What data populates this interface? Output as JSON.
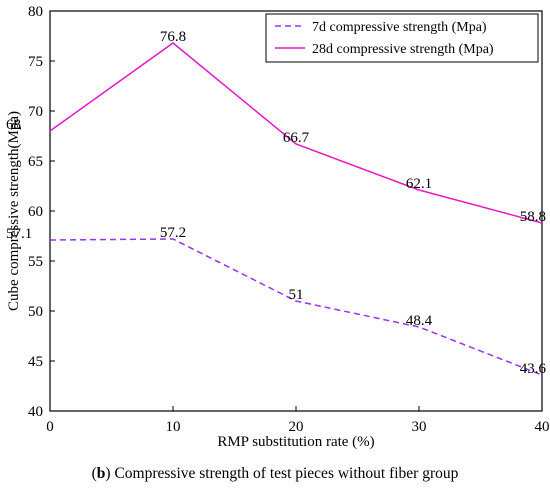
{
  "chart_data": {
    "type": "line",
    "x": [
      0,
      10,
      20,
      30,
      40
    ],
    "series": [
      {
        "name": "7d compressive strength (Mpa)",
        "values": [
          57.1,
          57.2,
          51,
          48.4,
          43.6
        ],
        "labels": [
          "57.1",
          "57.2",
          "51",
          "48.4",
          "43.6"
        ],
        "color": "#9b30ff",
        "style": "dashed"
      },
      {
        "name": "28d compressive strength (Mpa)",
        "values": [
          68,
          76.8,
          66.7,
          62.1,
          58.8
        ],
        "labels": [
          "68",
          "76.8",
          "66.7",
          "62.1",
          "58.8"
        ],
        "color": "#e619c8",
        "style": "solid"
      }
    ],
    "xlabel": "RMP substitution rate (%)",
    "ylabel": "Cube compressive strength(Mpa)",
    "xlim": [
      0,
      40
    ],
    "ylim": [
      40,
      80
    ],
    "xticks": [
      "0",
      "10",
      "20",
      "30",
      "40"
    ],
    "yticks": [
      "40",
      "45",
      "50",
      "55",
      "60",
      "65",
      "70",
      "75",
      "80"
    ],
    "legend_position": "top-right",
    "grid": false
  },
  "caption": {
    "bold": "b",
    "prefix": "(",
    "suffix": ")",
    "text": " Compressive strength of test pieces without fiber group"
  }
}
